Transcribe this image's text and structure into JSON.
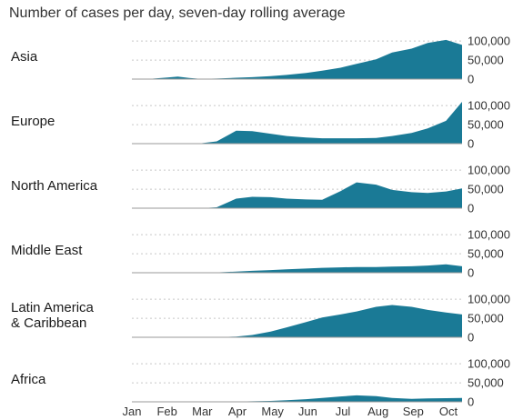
{
  "chart_data": {
    "type": "area",
    "subtitle": "Number of cases per day, seven-day rolling average",
    "x_labels": [
      "Jan",
      "Feb",
      "Mar",
      "Apr",
      "May",
      "Jun",
      "Jul",
      "Aug",
      "Sep",
      "Oct"
    ],
    "y_ticks": [
      0,
      50000,
      100000
    ],
    "y_tick_labels": [
      "0",
      "50,000",
      "100,000"
    ],
    "ylim": [
      0,
      110000
    ],
    "grid": true,
    "color": "#1a7a96",
    "x": [
      "2020-01-01",
      "2020-01-15",
      "2020-02-01",
      "2020-02-10",
      "2020-02-20",
      "2020-03-01",
      "2020-03-15",
      "2020-04-01",
      "2020-04-15",
      "2020-05-01",
      "2020-05-15",
      "2020-06-01",
      "2020-06-15",
      "2020-07-01",
      "2020-07-15",
      "2020-08-01",
      "2020-08-15",
      "2020-09-01",
      "2020-09-15",
      "2020-10-01",
      "2020-10-15"
    ],
    "series": [
      {
        "name": "Asia",
        "values": [
          0,
          200,
          4000,
          6500,
          3000,
          800,
          1500,
          3500,
          5000,
          8000,
          11000,
          16000,
          22000,
          30000,
          40000,
          52000,
          70000,
          80000,
          95000,
          103000,
          90000
        ]
      },
      {
        "name": "Europe",
        "values": [
          0,
          0,
          0,
          0,
          100,
          1000,
          6000,
          34000,
          33000,
          26000,
          20000,
          16000,
          14000,
          14000,
          14000,
          15000,
          20000,
          28000,
          40000,
          60000,
          110000
        ]
      },
      {
        "name": "North America",
        "values": [
          0,
          0,
          0,
          0,
          0,
          100,
          2500,
          25000,
          30000,
          29000,
          25000,
          23000,
          22000,
          45000,
          68000,
          62000,
          48000,
          42000,
          40000,
          44000,
          52000
        ]
      },
      {
        "name": "Middle East",
        "values": [
          0,
          0,
          0,
          0,
          0,
          200,
          1000,
          3000,
          5000,
          7000,
          9000,
          11000,
          13000,
          14000,
          15000,
          15000,
          16000,
          17000,
          19000,
          22000,
          17000
        ]
      },
      {
        "name": "Latin America\n& Caribbean",
        "values": [
          0,
          0,
          0,
          0,
          0,
          0,
          300,
          2000,
          6000,
          15000,
          26000,
          40000,
          52000,
          60000,
          68000,
          80000,
          85000,
          80000,
          72000,
          65000,
          60000
        ]
      },
      {
        "name": "Africa",
        "values": [
          0,
          0,
          0,
          0,
          0,
          0,
          100,
          800,
          1500,
          2500,
          4000,
          7000,
          10000,
          14000,
          17000,
          15000,
          10000,
          8000,
          9000,
          9500,
          10000
        ]
      }
    ]
  }
}
